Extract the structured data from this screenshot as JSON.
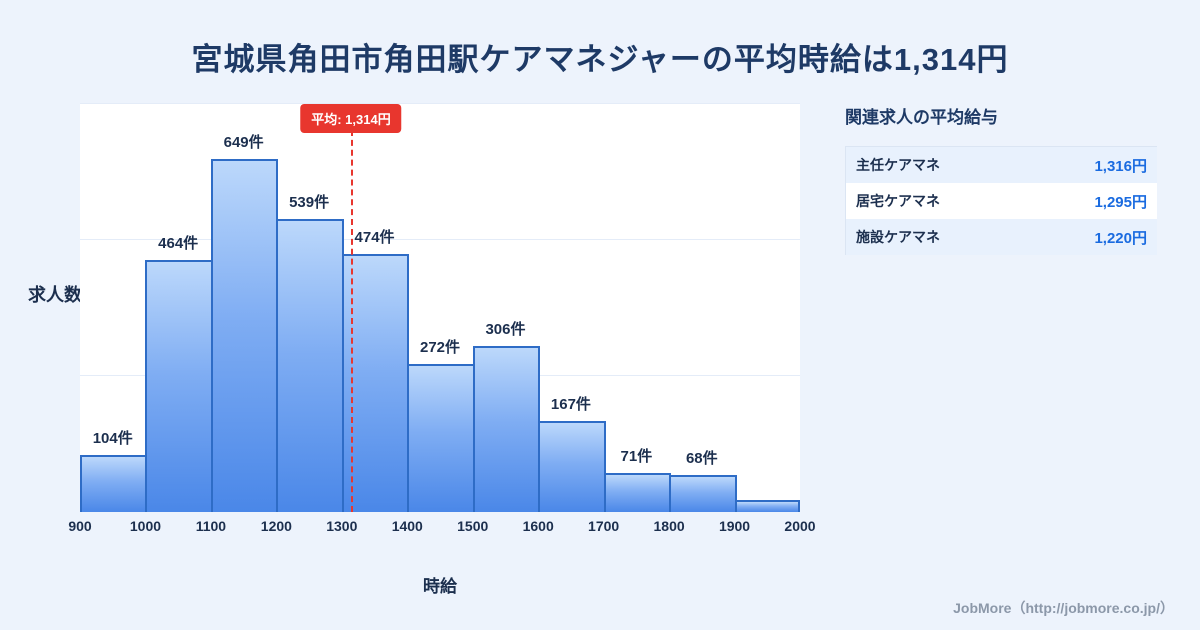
{
  "title": "宮城県角田市角田駅ケアマネジャーの平均時給は1,314円",
  "chart_data": {
    "type": "bar",
    "title": "宮城県角田市角田駅ケアマネジャーの平均時給は1,314円",
    "xlabel": "時給",
    "ylabel": "求人数",
    "xmin": 900,
    "xmax": 2000,
    "ymax": 750,
    "gridlines": [
      250,
      500,
      750
    ],
    "bin_edges": [
      900,
      1000,
      1100,
      1200,
      1300,
      1400,
      1500,
      1600,
      1700,
      1800,
      1900,
      2000
    ],
    "x_ticks": [
      "900",
      "1000",
      "1100",
      "1200",
      "1300",
      "1400",
      "1500",
      "1600",
      "1700",
      "1800",
      "1900",
      "2000"
    ],
    "values": [
      104,
      464,
      649,
      539,
      474,
      272,
      306,
      167,
      71,
      68,
      22
    ],
    "labels": [
      "104件",
      "464件",
      "649件",
      "539件",
      "474件",
      "272件",
      "306件",
      "167件",
      "71件",
      "68件",
      ""
    ],
    "average_line": {
      "value": 1314,
      "label": "平均: 1,314円",
      "color": "#e8362e"
    },
    "bar_color_top": "#bcd8fb",
    "bar_color_bottom": "#4a87e8",
    "bar_border_color": "#2e6cc6",
    "legend": "none",
    "grid": "on"
  },
  "related_panel": {
    "heading": "関連求人の平均給与",
    "rows": [
      {
        "label": "主任ケアマネ",
        "value": "1,316円"
      },
      {
        "label": "居宅ケアマネ",
        "value": "1,295円"
      },
      {
        "label": "施設ケアマネ",
        "value": "1,220円"
      }
    ]
  },
  "footer": {
    "credit": "JobMore（http://jobmore.co.jp/）"
  }
}
